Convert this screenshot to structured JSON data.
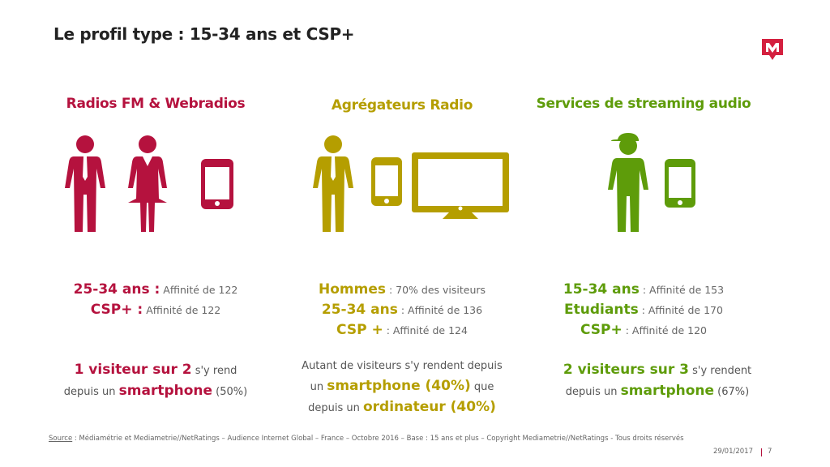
{
  "title": "Le profil type : 15-34 ans et CSP+",
  "colors": {
    "red": "#b5123e",
    "gold": "#b59e00",
    "green": "#5e9c0a"
  },
  "columns": [
    {
      "heading": "Radios FM & Webradios",
      "icons": [
        "man-icon",
        "woman-icon",
        "smartphone-icon"
      ],
      "stats": [
        {
          "bold": "25-34 ans :",
          "text": " Affinité de 122"
        },
        {
          "bold": "CSP+ :",
          "text": " Affinité de 122"
        }
      ],
      "footer": {
        "p1": "1 visiteur sur 2",
        "p2": " s'y rend",
        "p3": "depuis un ",
        "p4": "smartphone",
        "p5": " (50%)"
      }
    },
    {
      "heading": "Agrégateurs Radio",
      "icons": [
        "man-icon",
        "smartphone-icon",
        "monitor-icon"
      ],
      "stats": [
        {
          "bold": "Hommes",
          "text": " : 70% des visiteurs"
        },
        {
          "bold": "25-34 ans",
          "text": " : Affinité de 136"
        },
        {
          "bold": "CSP +",
          "text": " : Affinité de 124"
        }
      ],
      "footer": {
        "p1": "Autant de visiteurs s'y rendent depuis",
        "p2": "un ",
        "p3": "smartphone (40%)",
        "p4": " que",
        "p5": "depuis un ",
        "p6": "ordinateur (40%)"
      }
    },
    {
      "heading": "Services de streaming audio",
      "icons": [
        "young-man-cap-icon",
        "smartphone-icon"
      ],
      "stats": [
        {
          "bold": "15-34 ans",
          "text": " : Affinité de 153"
        },
        {
          "bold": "Etudiants",
          "text": " : Affinité de 170"
        },
        {
          "bold": "CSP+",
          "text": " : Affinité de 120"
        }
      ],
      "footer": {
        "p1": "2 visiteurs sur 3",
        "p2": " s'y rendent",
        "p3": "depuis un ",
        "p4": "smartphone",
        "p5": " (67%)"
      }
    }
  ],
  "source": {
    "label": "Source",
    "text": " : Médiamétrie et Mediametrie//NetRatings – Audience Internet Global – France – Octobre 2016 – Base : 15 ans et plus – Copyright Mediametrie//NetRatings - Tous droits réservés"
  },
  "date": "29/01/2017",
  "page_number": "7"
}
